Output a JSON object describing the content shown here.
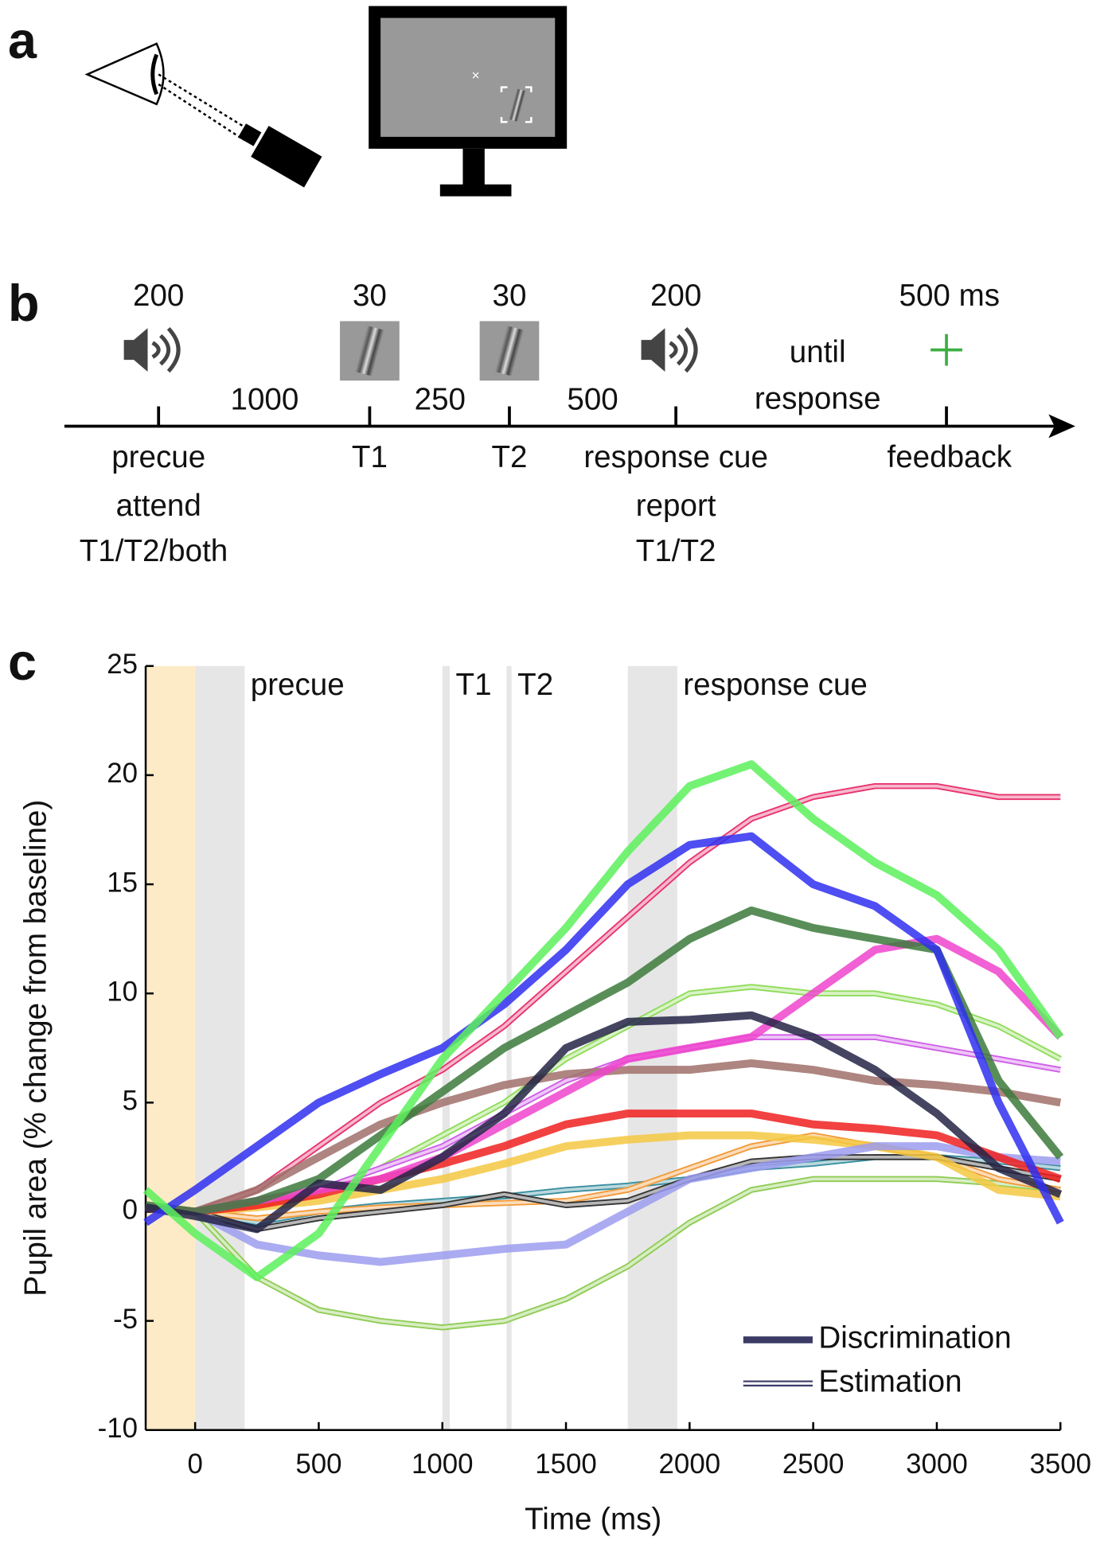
{
  "panel_labels": [
    "a",
    "b",
    "c"
  ],
  "timeline": {
    "events": [
      {
        "duration": "200",
        "name": "precue",
        "notes": [
          "attend",
          "T1/T2/both"
        ]
      },
      {
        "duration": "30",
        "name": "T1",
        "notes": []
      },
      {
        "duration": "30",
        "name": "T2",
        "notes": []
      },
      {
        "duration": "200",
        "name": "response cue",
        "notes": [
          "report",
          "T1/T2"
        ]
      },
      {
        "duration": "500 ms",
        "name": "feedback",
        "notes": []
      }
    ],
    "intervals": [
      [
        "1000"
      ],
      [
        "250"
      ],
      [
        "500"
      ],
      [
        "until",
        "response"
      ]
    ]
  },
  "chart_data": {
    "type": "line",
    "xlabel": "Time (ms)",
    "ylabel": "Pupil area (% change from baseline)",
    "xlim": [
      -200,
      3500
    ],
    "ylim": [
      -10,
      25
    ],
    "xticks": [
      0,
      500,
      1000,
      1500,
      2000,
      2500,
      3000,
      3500
    ],
    "yticks": [
      -10,
      -5,
      0,
      5,
      10,
      15,
      20,
      25
    ],
    "bands": [
      {
        "start": -200,
        "end": 0,
        "color": "#fdebc8"
      },
      {
        "label": "precue",
        "start": 0,
        "end": 200,
        "color": "#e6e6e6"
      },
      {
        "label": "T1",
        "start": 1000,
        "end": 1030,
        "color": "#e6e6e6"
      },
      {
        "label": "T2",
        "start": 1260,
        "end": 1280,
        "color": "#e6e6e6"
      },
      {
        "label": "response cue",
        "start": 1750,
        "end": 1950,
        "color": "#e6e6e6"
      }
    ],
    "legend": "lower right",
    "x": [
      -200,
      0,
      250,
      500,
      750,
      1000,
      1250,
      1500,
      1750,
      2000,
      2250,
      2500,
      2750,
      3000,
      3250,
      3500
    ],
    "series": [
      {
        "name": "Estimation",
        "color": "#3b3b66",
        "style": "thin",
        "lines": [
          {
            "color": "#e8336e",
            "values": [
              0.2,
              0,
              1,
              3,
              5,
              6.5,
              8.5,
              11,
              13.5,
              16,
              18,
              19,
              19.5,
              19.5,
              19,
              19
            ]
          },
          {
            "color": "#8fdc5a",
            "values": [
              0.2,
              0,
              0.5,
              1,
              2,
              3.5,
              5,
              7,
              8.5,
              10,
              10.3,
              10,
              10,
              9.5,
              8.5,
              7
            ]
          },
          {
            "color": "#8fcc55",
            "values": [
              0.2,
              0,
              -3,
              -4.5,
              -5,
              -5.3,
              -5,
              -4,
              -2.5,
              -0.5,
              1,
              1.5,
              1.5,
              1.5,
              1.3,
              1
            ]
          },
          {
            "color": "#3a8fa0",
            "values": [
              0.2,
              0,
              -0.5,
              0,
              0.3,
              0.5,
              0.7,
              1,
              1.2,
              1.5,
              2,
              2.2,
              2.5,
              2.5,
              2.3,
              2
            ]
          },
          {
            "color": "#cf5ee8",
            "values": [
              0.2,
              0,
              0.3,
              1,
              2,
              3,
              4.5,
              6,
              7,
              7.5,
              8,
              8,
              8,
              7.5,
              7,
              6.5
            ]
          },
          {
            "color": "#f29a3a",
            "values": [
              0.2,
              0,
              -0.3,
              0,
              0.2,
              0.3,
              0.4,
              0.5,
              1,
              2,
              3,
              3.5,
              3,
              2.5,
              1.5,
              1
            ]
          },
          {
            "color": "#333333",
            "values": [
              0.2,
              0,
              -0.8,
              -0.3,
              0,
              0.3,
              0.8,
              0.3,
              0.5,
              1.5,
              2.3,
              2.5,
              2.5,
              2.5,
              2,
              1.5
            ]
          }
        ]
      },
      {
        "name": "Discrimination",
        "color": "#3b3b66",
        "style": "thick",
        "lines": [
          {
            "color": "#f5c842",
            "values": [
              0.2,
              0,
              0.2,
              0.5,
              1,
              1.5,
              2.2,
              3,
              3.3,
              3.5,
              3.5,
              3.3,
              3,
              2.5,
              1,
              0.7
            ]
          },
          {
            "color": "#9c9cf0",
            "values": [
              0.2,
              0,
              -1.5,
              -2,
              -2.3,
              -2,
              -1.7,
              -1.5,
              0,
              1.5,
              2,
              2.5,
              3,
              3,
              2.5,
              2.3
            ]
          },
          {
            "color": "#a0706a",
            "values": [
              0.2,
              0,
              1,
              2.5,
              4,
              5,
              5.8,
              6.3,
              6.5,
              6.5,
              6.8,
              6.5,
              6,
              5.8,
              5.5,
              5
            ]
          },
          {
            "color": "#f02020",
            "values": [
              0.2,
              0,
              0.3,
              0.8,
              1.5,
              2.2,
              3,
              4,
              4.5,
              4.5,
              4.5,
              4,
              3.8,
              3.5,
              2.5,
              1.5
            ]
          },
          {
            "color": "#ee44cc",
            "values": [
              0.2,
              0,
              0.5,
              1,
              1.5,
              2.5,
              4,
              5.5,
              7,
              7.5,
              8,
              10,
              12,
              12.5,
              11,
              8
            ]
          },
          {
            "color": "#3c7a3c",
            "values": [
              0.3,
              0,
              0.5,
              1.5,
              3.5,
              5.5,
              7.5,
              9,
              10.5,
              12.5,
              13.8,
              13,
              12.5,
              12,
              6,
              2.5
            ]
          },
          {
            "color": "#242447",
            "values": [
              0.2,
              -0.2,
              -0.8,
              1.3,
              1,
              2.5,
              4.5,
              7.5,
              8.7,
              8.8,
              9,
              8,
              6.5,
              4.5,
              2,
              0.8
            ]
          },
          {
            "color": "#2f2ff0",
            "values": [
              -0.5,
              1,
              3,
              5,
              6.3,
              7.5,
              9.5,
              12,
              15,
              16.8,
              17.2,
              15,
              14,
              12,
              5,
              -0.5
            ]
          },
          {
            "color": "#5cf05c",
            "values": [
              1,
              -1,
              -3,
              -1,
              3,
              7,
              10,
              13,
              16.5,
              19.5,
              20.5,
              18,
              16,
              14.5,
              12,
              8
            ]
          }
        ]
      }
    ]
  }
}
